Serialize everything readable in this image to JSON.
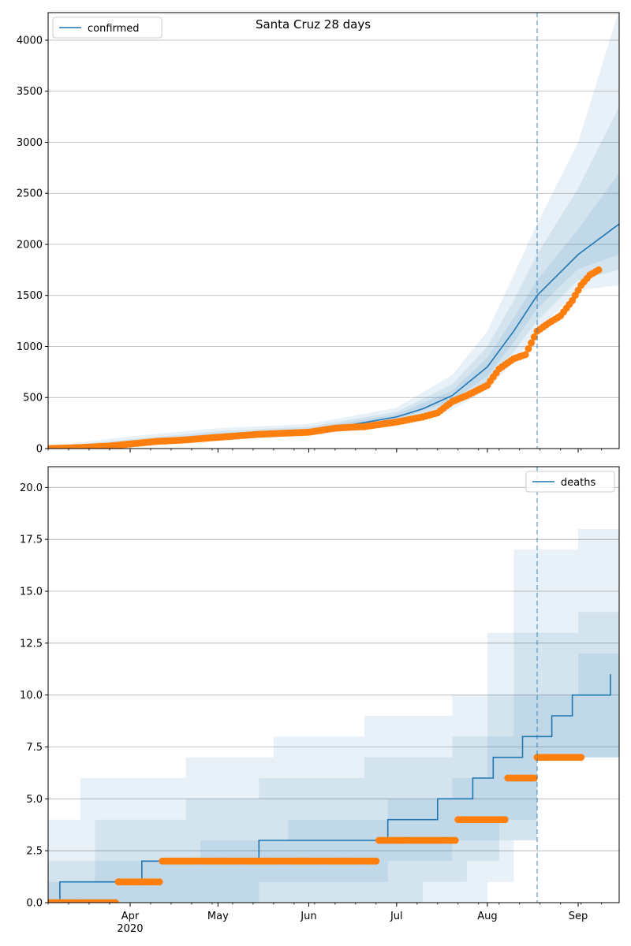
{
  "figure": {
    "title": "Santa Cruz 28 days"
  },
  "colors": {
    "model": "#1f77b4",
    "observed": "#ff7f0e",
    "band": "#1f77b4",
    "grid": "#b0b0b0",
    "cutoff": "#1f77b4"
  },
  "chart_data": [
    {
      "type": "line",
      "name": "confirmed-panel",
      "legend": {
        "label": "confirmed",
        "placement": "upper-left"
      },
      "title": "Santa Cruz 28 days",
      "xlabel": "",
      "ylabel": "",
      "x_start": "2020-03-04",
      "x_end": "2020-09-15",
      "forecast_start": "2020-08-18",
      "ylim": [
        0,
        4270
      ],
      "yticks": [
        0,
        500,
        1000,
        1500,
        2000,
        2500,
        3000,
        3500,
        4000
      ],
      "ytick_labels": [
        "0",
        "500",
        "1000",
        "1500",
        "2000",
        "2500",
        "3000",
        "3500",
        "4000"
      ],
      "grid": "horizontal",
      "model_line": [
        [
          "2020-03-04",
          0
        ],
        [
          "2020-03-15",
          10
        ],
        [
          "2020-03-25",
          25
        ],
        [
          "2020-04-05",
          50
        ],
        [
          "2020-04-15",
          85
        ],
        [
          "2020-05-01",
          115
        ],
        [
          "2020-05-15",
          140
        ],
        [
          "2020-06-01",
          175
        ],
        [
          "2020-06-15",
          230
        ],
        [
          "2020-07-01",
          310
        ],
        [
          "2020-07-10",
          390
        ],
        [
          "2020-07-20",
          520
        ],
        [
          "2020-08-01",
          800
        ],
        [
          "2020-08-10",
          1150
        ],
        [
          "2020-08-18",
          1500
        ],
        [
          "2020-08-25",
          1700
        ],
        [
          "2020-09-01",
          1900
        ],
        [
          "2020-09-08",
          2050
        ],
        [
          "2020-09-15",
          2200
        ]
      ],
      "bands": [
        {
          "lower": [
            [
              "2020-03-04",
              0
            ],
            [
              "2020-04-01",
              20
            ],
            [
              "2020-05-01",
              80
            ],
            [
              "2020-06-01",
              130
            ],
            [
              "2020-07-01",
              230
            ],
            [
              "2020-07-20",
              380
            ],
            [
              "2020-08-01",
              580
            ],
            [
              "2020-08-10",
              850
            ],
            [
              "2020-08-18",
              1150
            ],
            [
              "2020-09-01",
              1550
            ],
            [
              "2020-09-15",
              1600
            ]
          ],
          "upper": [
            [
              "2020-03-04",
              20
            ],
            [
              "2020-04-01",
              120
            ],
            [
              "2020-05-01",
              200
            ],
            [
              "2020-06-01",
              240
            ],
            [
              "2020-07-01",
              400
            ],
            [
              "2020-07-20",
              720
            ],
            [
              "2020-08-01",
              1150
            ],
            [
              "2020-08-10",
              1700
            ],
            [
              "2020-08-18",
              2200
            ],
            [
              "2020-09-01",
              3000
            ],
            [
              "2020-09-15",
              4300
            ]
          ]
        },
        {
          "lower": [
            [
              "2020-03-04",
              0
            ],
            [
              "2020-04-01",
              28
            ],
            [
              "2020-05-01",
              95
            ],
            [
              "2020-06-01",
              145
            ],
            [
              "2020-07-01",
              260
            ],
            [
              "2020-07-20",
              430
            ],
            [
              "2020-08-01",
              650
            ],
            [
              "2020-08-10",
              950
            ],
            [
              "2020-08-18",
              1250
            ],
            [
              "2020-09-01",
              1650
            ],
            [
              "2020-09-15",
              1750
            ]
          ],
          "upper": [
            [
              "2020-03-04",
              12
            ],
            [
              "2020-04-01",
              90
            ],
            [
              "2020-05-01",
              170
            ],
            [
              "2020-06-01",
              215
            ],
            [
              "2020-07-01",
              360
            ],
            [
              "2020-07-20",
              630
            ],
            [
              "2020-08-01",
              1000
            ],
            [
              "2020-08-10",
              1450
            ],
            [
              "2020-08-18",
              1900
            ],
            [
              "2020-09-01",
              2550
            ],
            [
              "2020-09-15",
              3350
            ]
          ]
        },
        {
          "lower": [
            [
              "2020-03-04",
              0
            ],
            [
              "2020-04-01",
              35
            ],
            [
              "2020-05-01",
              105
            ],
            [
              "2020-06-01",
              160
            ],
            [
              "2020-07-01",
              285
            ],
            [
              "2020-07-20",
              470
            ],
            [
              "2020-08-01",
              710
            ],
            [
              "2020-08-10",
              1040
            ],
            [
              "2020-08-18",
              1370
            ],
            [
              "2020-09-01",
              1760
            ],
            [
              "2020-09-15",
              1900
            ]
          ],
          "upper": [
            [
              "2020-03-04",
              6
            ],
            [
              "2020-04-01",
              70
            ],
            [
              "2020-05-01",
              150
            ],
            [
              "2020-06-01",
              195
            ],
            [
              "2020-07-01",
              335
            ],
            [
              "2020-07-20",
              570
            ],
            [
              "2020-08-01",
              890
            ],
            [
              "2020-08-10",
              1280
            ],
            [
              "2020-08-18",
              1650
            ],
            [
              "2020-09-01",
              2150
            ],
            [
              "2020-09-15",
              2700
            ]
          ]
        }
      ],
      "observed": [
        [
          "2020-03-04",
          0
        ],
        [
          "2020-03-15",
          10
        ],
        [
          "2020-03-25",
          25
        ],
        [
          "2020-04-01",
          45
        ],
        [
          "2020-04-10",
          70
        ],
        [
          "2020-04-20",
          85
        ],
        [
          "2020-05-01",
          110
        ],
        [
          "2020-05-15",
          140
        ],
        [
          "2020-06-01",
          160
        ],
        [
          "2020-06-10",
          200
        ],
        [
          "2020-06-20",
          215
        ],
        [
          "2020-07-01",
          260
        ],
        [
          "2020-07-10",
          310
        ],
        [
          "2020-07-15",
          350
        ],
        [
          "2020-07-20",
          460
        ],
        [
          "2020-07-25",
          520
        ],
        [
          "2020-08-01",
          620
        ],
        [
          "2020-08-05",
          780
        ],
        [
          "2020-08-10",
          880
        ],
        [
          "2020-08-14",
          920
        ],
        [
          "2020-08-18",
          1150
        ],
        [
          "2020-08-22",
          1230
        ],
        [
          "2020-08-26",
          1300
        ],
        [
          "2020-08-30",
          1450
        ],
        [
          "2020-09-02",
          1600
        ],
        [
          "2020-09-05",
          1700
        ],
        [
          "2020-09-08",
          1750
        ]
      ]
    },
    {
      "type": "line",
      "name": "deaths-panel",
      "legend": {
        "label": "deaths",
        "placement": "upper-right"
      },
      "xlabel": "",
      "ylabel": "",
      "x_start": "2020-03-04",
      "x_end": "2020-09-15",
      "forecast_start": "2020-08-18",
      "ylim": [
        0,
        21
      ],
      "yticks": [
        0,
        2.5,
        5,
        7.5,
        10,
        12.5,
        15,
        17.5,
        20
      ],
      "ytick_labels": [
        "0.0",
        "2.5",
        "5.0",
        "7.5",
        "10.0",
        "12.5",
        "15.0",
        "17.5",
        "20.0"
      ],
      "xticks": [
        "2020-04-01",
        "2020-05-01",
        "2020-06-01",
        "2020-07-01",
        "2020-08-01",
        "2020-09-01"
      ],
      "xtick_labels": [
        "Apr",
        "May",
        "Jun",
        "Jul",
        "Aug",
        "Sep"
      ],
      "year_label": "2020",
      "grid": "horizontal",
      "model_steps": [
        [
          "2020-03-04",
          0
        ],
        [
          "2020-03-08",
          1
        ],
        [
          "2020-04-05",
          2
        ],
        [
          "2020-05-15",
          3
        ],
        [
          "2020-06-28",
          4
        ],
        [
          "2020-07-15",
          5
        ],
        [
          "2020-07-27",
          6
        ],
        [
          "2020-08-03",
          7
        ],
        [
          "2020-08-13",
          8
        ],
        [
          "2020-08-23",
          9
        ],
        [
          "2020-08-30",
          10
        ],
        [
          "2020-09-12",
          11
        ]
      ],
      "bands": [
        {
          "lower": [
            [
              "2020-03-04",
              0
            ],
            [
              "2020-07-20",
              0
            ],
            [
              "2020-08-01",
              1
            ],
            [
              "2020-08-10",
              3
            ],
            [
              "2020-08-18",
              7
            ],
            [
              "2020-09-15",
              7
            ]
          ],
          "upper": [
            [
              "2020-03-04",
              4
            ],
            [
              "2020-03-15",
              6
            ],
            [
              "2020-04-20",
              7
            ],
            [
              "2020-05-20",
              8
            ],
            [
              "2020-06-20",
              9
            ],
            [
              "2020-07-20",
              10
            ],
            [
              "2020-08-01",
              13
            ],
            [
              "2020-08-10",
              17
            ],
            [
              "2020-08-18",
              17
            ],
            [
              "2020-09-01",
              18
            ],
            [
              "2020-09-15",
              21
            ]
          ]
        },
        {
          "lower": [
            [
              "2020-03-04",
              0
            ],
            [
              "2020-06-20",
              0
            ],
            [
              "2020-07-10",
              1
            ],
            [
              "2020-07-25",
              2
            ],
            [
              "2020-08-05",
              3
            ],
            [
              "2020-08-18",
              7
            ],
            [
              "2020-09-15",
              8
            ]
          ],
          "upper": [
            [
              "2020-03-04",
              2
            ],
            [
              "2020-03-20",
              4
            ],
            [
              "2020-04-20",
              5
            ],
            [
              "2020-05-15",
              6
            ],
            [
              "2020-06-20",
              7
            ],
            [
              "2020-07-20",
              8
            ],
            [
              "2020-08-01",
              10
            ],
            [
              "2020-08-10",
              13
            ],
            [
              "2020-08-18",
              13
            ],
            [
              "2020-09-01",
              14
            ],
            [
              "2020-09-15",
              16
            ]
          ]
        },
        {
          "lower": [
            [
              "2020-03-04",
              0
            ],
            [
              "2020-04-15",
              0
            ],
            [
              "2020-05-15",
              1
            ],
            [
              "2020-06-28",
              2
            ],
            [
              "2020-07-20",
              3
            ],
            [
              "2020-08-05",
              4
            ],
            [
              "2020-08-18",
              7
            ],
            [
              "2020-09-15",
              9
            ]
          ],
          "upper": [
            [
              "2020-03-04",
              1
            ],
            [
              "2020-03-20",
              2
            ],
            [
              "2020-04-25",
              3
            ],
            [
              "2020-05-25",
              4
            ],
            [
              "2020-06-28",
              5
            ],
            [
              "2020-07-20",
              6
            ],
            [
              "2020-08-01",
              8
            ],
            [
              "2020-08-10",
              10
            ],
            [
              "2020-08-18",
              10
            ],
            [
              "2020-09-01",
              12
            ],
            [
              "2020-09-15",
              14
            ]
          ]
        }
      ],
      "observed": [
        [
          "2020-03-04",
          0
        ],
        [
          "2020-03-28",
          1
        ],
        [
          "2020-04-12",
          2
        ],
        [
          "2020-06-25",
          3
        ],
        [
          "2020-07-22",
          4
        ],
        [
          "2020-08-08",
          6
        ],
        [
          "2020-08-18",
          7
        ],
        [
          "2020-09-02",
          7
        ]
      ]
    }
  ]
}
